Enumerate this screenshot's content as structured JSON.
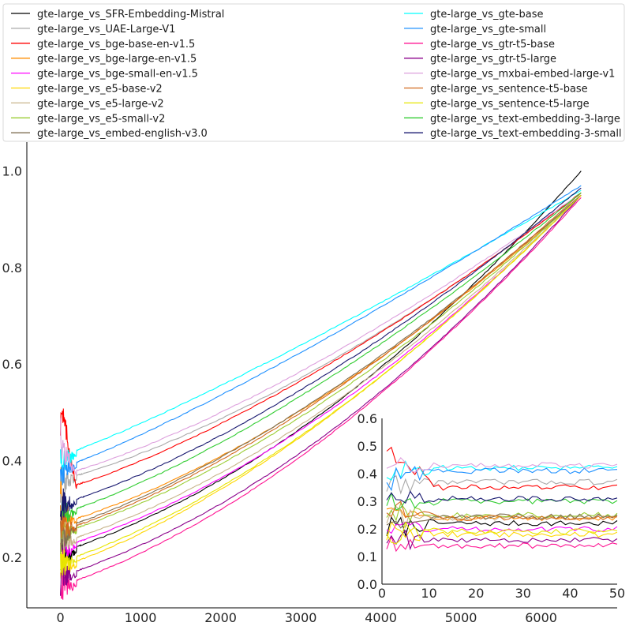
{
  "chart_data": {
    "type": "line",
    "title": "",
    "xlabel": "",
    "ylabel": "",
    "grid": false,
    "legend_placement": "top, two columns",
    "main": {
      "xlim": [
        -420,
        6950
      ],
      "ylim": [
        0.095,
        1.06
      ],
      "xticks": [
        0,
        1000,
        2000,
        3000,
        4000,
        5000,
        6000
      ],
      "xtick_labels": [
        "0",
        "1000",
        "2000",
        "3000",
        "4000",
        "5000",
        "6000"
      ],
      "yticks": [
        0.2,
        0.4,
        0.6,
        0.8,
        1.0
      ],
      "ytick_labels": [
        "0.2",
        "0.4",
        "0.6",
        "0.8",
        "1.0"
      ]
    },
    "inset": {
      "xlim": [
        0,
        50
      ],
      "ylim": [
        0.0,
        0.6
      ],
      "xticks": [
        0,
        10,
        20,
        30,
        40,
        50
      ],
      "xtick_labels": [
        "0",
        "10",
        "20",
        "30",
        "40",
        "50"
      ],
      "yticks": [
        0.0,
        0.1,
        0.2,
        0.3,
        0.4,
        0.5,
        0.6
      ],
      "ytick_labels": [
        "0.0",
        "0.1",
        "0.2",
        "0.3",
        "0.4",
        "0.5",
        "0.6"
      ]
    },
    "series": [
      {
        "name": "gte-large_vs_SFR-Embedding-Mistral",
        "color": "#000000",
        "start": 0.2,
        "settle": 0.21,
        "end": 1.0,
        "k": 2.0,
        "inset_end": 0.22
      },
      {
        "name": "gte-large_vs_UAE-Large-V1",
        "color": "#a9a9a9",
        "start": 0.36,
        "settle": 0.36,
        "end": 0.955,
        "k": 1.7,
        "inset_end": 0.37
      },
      {
        "name": "gte-large_vs_bge-base-en-v1.5",
        "color": "#ff0000",
        "start": 0.52,
        "settle": 0.34,
        "end": 0.955,
        "k": 1.6,
        "inset_end": 0.35
      },
      {
        "name": "gte-large_vs_bge-large-en-v1.5",
        "color": "#ff8c00",
        "start": 0.3,
        "settle": 0.27,
        "end": 0.95,
        "k": 1.8,
        "inset_end": 0.24
      },
      {
        "name": "gte-large_vs_bge-small-en-v1.5",
        "color": "#ff00ff",
        "start": 0.22,
        "settle": 0.22,
        "end": 0.95,
        "k": 1.9,
        "inset_end": 0.2
      },
      {
        "name": "gte-large_vs_e5-base-v2",
        "color": "#ffd700",
        "start": 0.18,
        "settle": 0.18,
        "end": 0.95,
        "k": 1.75,
        "inset_end": 0.18
      },
      {
        "name": "gte-large_vs_e5-large-v2",
        "color": "#c8b48c",
        "start": 0.24,
        "settle": 0.23,
        "end": 0.95,
        "k": 1.85,
        "inset_end": 0.24
      },
      {
        "name": "gte-large_vs_e5-small-v2",
        "color": "#9acd32",
        "start": 0.26,
        "settle": 0.25,
        "end": 0.95,
        "k": 1.8,
        "inset_end": 0.25
      },
      {
        "name": "gte-large_vs_embed-english-v3.0",
        "color": "#7f6f52",
        "start": 0.23,
        "settle": 0.26,
        "end": 0.95,
        "k": 1.7,
        "inset_end": 0.245
      },
      {
        "name": "gte-large_vs_gte-base",
        "color": "#00ffff",
        "start": 0.4,
        "settle": 0.41,
        "end": 0.96,
        "k": 1.25,
        "inset_end": 0.42
      },
      {
        "name": "gte-large_vs_gte-small",
        "color": "#1e90ff",
        "start": 0.38,
        "settle": 0.385,
        "end": 0.97,
        "k": 1.3,
        "inset_end": 0.41
      },
      {
        "name": "gte-large_vs_gtr-t5-base",
        "color": "#ff1493",
        "start": 0.14,
        "settle": 0.14,
        "end": 0.945,
        "k": 1.9,
        "inset_end": 0.14
      },
      {
        "name": "gte-large_vs_gtr-t5-large",
        "color": "#8b008b",
        "start": 0.16,
        "settle": 0.16,
        "end": 0.95,
        "k": 2.0,
        "inset_end": 0.16
      },
      {
        "name": "gte-large_vs_mxbai-embed-large-v1",
        "color": "#dda0dd",
        "start": 0.43,
        "settle": 0.37,
        "end": 0.955,
        "k": 1.6,
        "inset_end": 0.43
      },
      {
        "name": "gte-large_vs_sentence-t5-base",
        "color": "#d2691e",
        "start": 0.27,
        "settle": 0.255,
        "end": 0.955,
        "k": 1.75,
        "inset_end": 0.24
      },
      {
        "name": "gte-large_vs_sentence-t5-large",
        "color": "#e6e600",
        "start": 0.19,
        "settle": 0.19,
        "end": 0.95,
        "k": 1.8,
        "inset_end": 0.19
      },
      {
        "name": "gte-large_vs_text-embedding-3-large",
        "color": "#32cd32",
        "start": 0.29,
        "settle": 0.29,
        "end": 0.955,
        "k": 1.6,
        "inset_end": 0.3
      },
      {
        "name": "gte-large_vs_text-embedding-3-small",
        "color": "#191970",
        "start": 0.31,
        "settle": 0.31,
        "end": 0.965,
        "k": 1.65,
        "inset_end": 0.31
      }
    ]
  }
}
